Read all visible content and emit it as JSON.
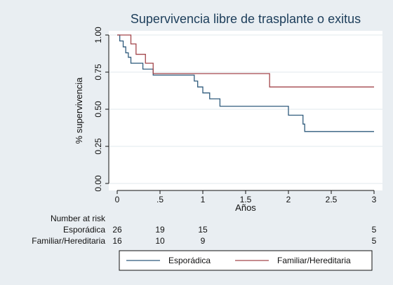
{
  "chart_data": {
    "type": "line",
    "title": "Supervivencia libre de trasplante o exitus",
    "xlabel": "Años",
    "ylabel": "% supervivencia",
    "xlim": [
      0,
      3
    ],
    "ylim": [
      0,
      1
    ],
    "x_ticks": [
      {
        "value": 0,
        "label": "0"
      },
      {
        "value": 0.5,
        "label": ".5"
      },
      {
        "value": 1,
        "label": "1"
      },
      {
        "value": 1.5,
        "label": "1.5"
      },
      {
        "value": 2,
        "label": "2"
      },
      {
        "value": 2.5,
        "label": "2.5"
      },
      {
        "value": 3,
        "label": "3"
      }
    ],
    "y_ticks": [
      {
        "value": 0,
        "label": "0.00"
      },
      {
        "value": 0.25,
        "label": "0.25"
      },
      {
        "value": 0.5,
        "label": "0.50"
      },
      {
        "value": 0.75,
        "label": "0.75"
      },
      {
        "value": 1,
        "label": "1.00"
      }
    ],
    "grid": "horizontal",
    "series": [
      {
        "name": "Esporádica",
        "color": "#2f5b7c",
        "steps": [
          [
            0,
            1.0
          ],
          [
            0.03,
            0.96
          ],
          [
            0.07,
            0.92
          ],
          [
            0.1,
            0.88
          ],
          [
            0.13,
            0.85
          ],
          [
            0.16,
            0.81
          ],
          [
            0.3,
            0.77
          ],
          [
            0.42,
            0.73
          ],
          [
            0.9,
            0.69
          ],
          [
            0.94,
            0.65
          ],
          [
            1.0,
            0.61
          ],
          [
            1.08,
            0.57
          ],
          [
            1.2,
            0.52
          ],
          [
            2.0,
            0.46
          ],
          [
            2.17,
            0.4
          ],
          [
            2.19,
            0.35
          ],
          [
            3.0,
            0.35
          ]
        ]
      },
      {
        "name": "Familiar/Hereditaria",
        "color": "#a3464b",
        "steps": [
          [
            0,
            1.0
          ],
          [
            0.16,
            0.94
          ],
          [
            0.22,
            0.87
          ],
          [
            0.33,
            0.81
          ],
          [
            0.42,
            0.74
          ],
          [
            1.78,
            0.65
          ],
          [
            3.0,
            0.65
          ]
        ]
      }
    ],
    "risk_table": {
      "header": "Number at risk",
      "rows": [
        {
          "label": "Esporádica",
          "counts": [
            {
              "x": 0,
              "n": "26"
            },
            {
              "x": 0.5,
              "n": "19"
            },
            {
              "x": 1,
              "n": "15"
            },
            {
              "x": 3,
              "n": "5"
            }
          ]
        },
        {
          "label": "Familiar/Hereditaria",
          "counts": [
            {
              "x": 0,
              "n": "16"
            },
            {
              "x": 0.5,
              "n": "10"
            },
            {
              "x": 1,
              "n": "9"
            },
            {
              "x": 3,
              "n": "5"
            }
          ]
        }
      ]
    },
    "legend": {
      "placement": "bottom",
      "entries": [
        "Esporádica",
        "Familiar/Hereditaria"
      ]
    }
  }
}
